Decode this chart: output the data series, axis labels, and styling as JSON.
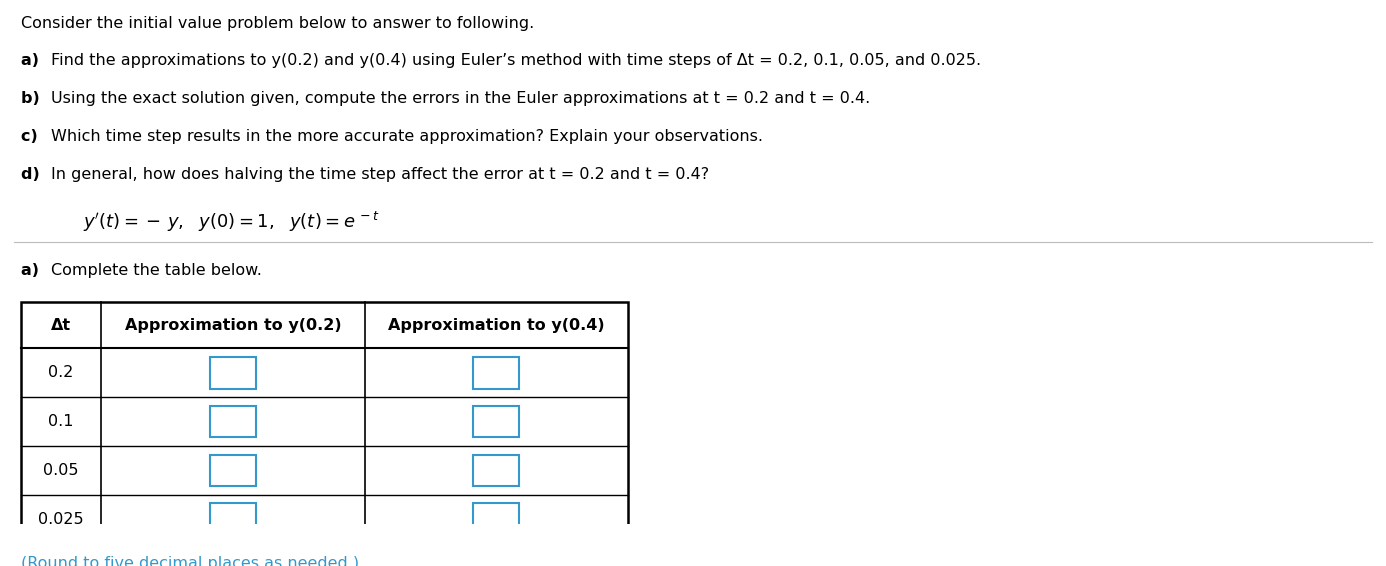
{
  "background_color": "#ffffff",
  "line0": "Consider the initial value problem below to answer to following.",
  "line1_bold": "a) ",
  "line1_rest": "Find the approximations to y(0.2) and y(0.4) using Euler’s method with time steps of Δt = 0.2, 0.1, 0.05, and 0.025.",
  "line2_bold": "b) ",
  "line2_rest": "Using the exact solution given, compute the errors in the Euler approximations at t = 0.2 and t = 0.4.",
  "line3_bold": "c) ",
  "line3_rest": "Which time step results in the more accurate approximation? Explain your observations.",
  "line4_bold": "d) ",
  "line4_rest": "In general, how does halving the time step affect the error at t = 0.2 and t = 0.4?",
  "section_bold": "a) ",
  "section_rest": "Complete the table below.",
  "table_header_0": "Δt",
  "table_header_1": "Approximation to y(0.2)",
  "table_header_2": "Approximation to y(0.4)",
  "table_rows": [
    "0.2",
    "0.1",
    "0.05",
    "0.025"
  ],
  "footer": "(Round to five decimal places as needed.)",
  "text_color": "#000000",
  "box_color": "#3399cc",
  "footer_color": "#3399cc",
  "sep_color": "#bbbbbb",
  "font_size_body": 11.5,
  "font_size_formula": 13.0,
  "font_size_table_header": 11.5
}
